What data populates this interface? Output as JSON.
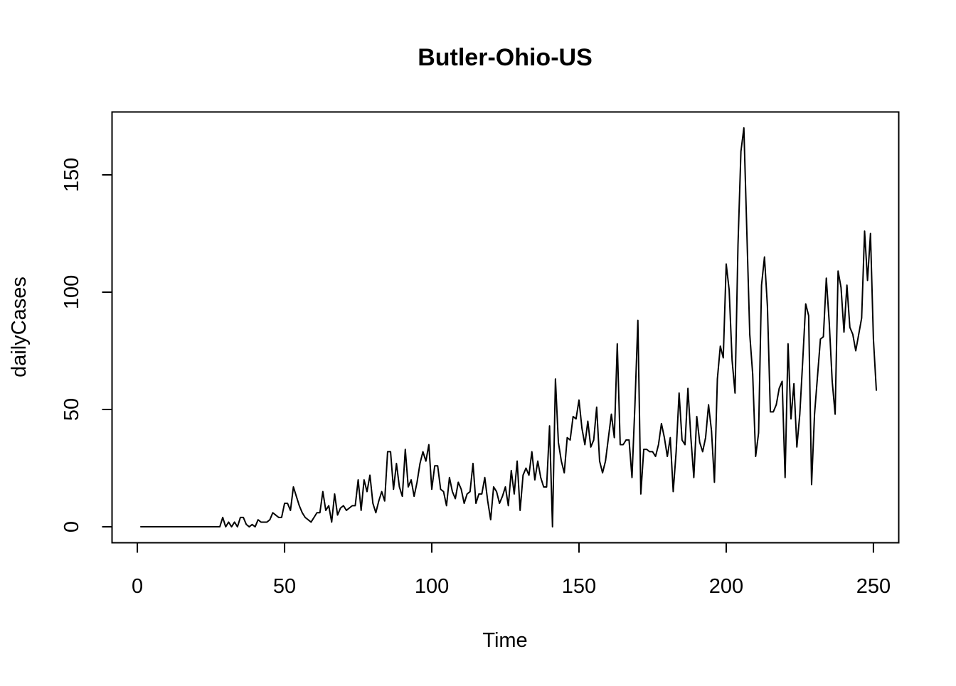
{
  "chart_data": {
    "type": "line",
    "title": "Butler-Ohio-US",
    "xlabel": "Time",
    "ylabel": "dailyCases",
    "xlim": [
      -8.6,
      258.6
    ],
    "ylim": [
      -6.8,
      176.8
    ],
    "x_ticks": [
      0,
      50,
      100,
      150,
      200,
      250
    ],
    "y_ticks": [
      0,
      50,
      100,
      150
    ],
    "grid": false,
    "box": true,
    "line_color": "#000000",
    "series": [
      {
        "x_start": 1,
        "values": [
          0,
          0,
          0,
          0,
          0,
          0,
          0,
          0,
          0,
          0,
          0,
          0,
          0,
          0,
          0,
          0,
          0,
          0,
          0,
          0,
          0,
          0,
          0,
          0,
          0,
          0,
          0,
          0,
          4,
          0,
          2,
          0,
          2,
          0,
          4,
          4,
          1,
          0,
          1,
          0,
          3,
          2,
          2,
          2,
          3,
          6,
          5,
          4,
          4,
          10,
          10,
          7,
          17,
          13,
          9,
          6,
          4,
          3,
          2,
          4,
          6,
          6,
          15,
          7,
          9,
          2,
          14,
          5,
          8,
          9,
          7,
          8,
          9,
          9,
          20,
          7,
          20,
          15,
          22,
          10,
          6,
          11,
          15,
          11,
          32,
          32,
          16,
          27,
          17,
          13,
          33,
          17,
          20,
          13,
          19,
          27,
          32,
          28,
          35,
          16,
          26,
          26,
          16,
          15,
          9,
          21,
          15,
          12,
          19,
          16,
          10,
          14,
          15,
          27,
          10,
          14,
          14,
          21,
          11,
          3,
          17,
          15,
          10,
          13,
          17,
          9,
          24,
          14,
          28,
          7,
          22,
          25,
          22,
          32,
          20,
          28,
          21,
          17,
          17,
          43,
          0,
          63,
          36,
          28,
          23,
          38,
          37,
          47,
          46,
          54,
          42,
          35,
          45,
          34,
          37,
          51,
          28,
          23,
          28,
          38,
          48,
          38,
          78,
          35,
          35,
          37,
          37,
          21,
          52,
          88,
          14,
          33,
          33,
          32,
          32,
          30,
          35,
          44,
          38,
          30,
          38,
          15,
          32,
          57,
          37,
          35,
          59,
          38,
          21,
          47,
          36,
          32,
          38,
          52,
          41,
          19,
          63,
          77,
          72,
          112,
          101,
          71,
          57,
          120,
          160,
          170,
          126,
          82,
          65,
          30,
          40,
          103,
          115,
          94,
          49,
          49,
          52,
          59,
          62,
          21,
          78,
          46,
          61,
          34,
          48,
          71,
          95,
          90,
          18,
          48,
          64,
          80,
          81,
          106,
          87,
          62,
          48,
          109,
          102,
          83,
          103,
          85,
          82,
          75,
          82,
          89,
          126,
          105,
          125,
          80,
          58
        ]
      }
    ]
  }
}
